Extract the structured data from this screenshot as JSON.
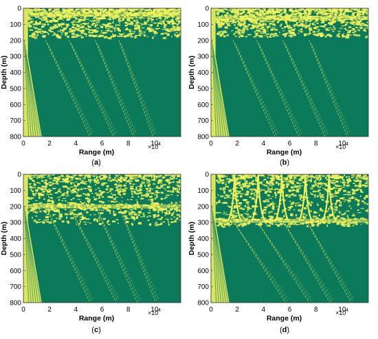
{
  "colors": {
    "background": "#0b7a5b",
    "foreground": "#f2f25c",
    "axis": "#333333"
  },
  "chart_data": [
    {
      "panel": "(a)",
      "type": "heatmap",
      "xlabel": "Range (m)",
      "ylabel": "Depth (m)",
      "x_multiplier": "×10",
      "x_exponent": "4",
      "xlim": [
        0,
        120000
      ],
      "ylim": [
        0,
        800
      ],
      "y_reversed": true,
      "x_ticks": [
        "0",
        "2",
        "4",
        "6",
        "8",
        "10"
      ],
      "y_ticks": [
        "0",
        "100",
        "200",
        "300",
        "400",
        "500",
        "600",
        "700",
        "800"
      ],
      "features": {
        "near_source_band_end_range_m": [
          500,
          14000
        ],
        "surface_interference_depth_m": [
          0,
          180
        ],
        "bright_layer_depth_m": 40,
        "arrival_lines_start_range_m": [
          18000,
          36000,
          56000,
          74000
        ],
        "arrival_lines_end_range_m": [
          52000,
          70000,
          85000,
          100000
        ]
      }
    },
    {
      "panel": "(b)",
      "type": "heatmap",
      "xlabel": "Range (m)",
      "ylabel": "Depth (m)",
      "x_multiplier": "×10",
      "x_exponent": "4",
      "xlim": [
        0,
        120000
      ],
      "ylim": [
        0,
        800
      ],
      "y_reversed": true,
      "x_ticks": [
        "0",
        "2",
        "4",
        "6",
        "8",
        "10"
      ],
      "y_ticks": [
        "0",
        "100",
        "200",
        "300",
        "400",
        "500",
        "600",
        "700",
        "800"
      ],
      "features": {
        "near_source_band_end_range_m": [
          500,
          14000
        ],
        "surface_interference_depth_m": [
          0,
          175
        ],
        "bright_layer_depth_m": 60,
        "arrival_lines_start_range_m": [
          18000,
          36000,
          56000,
          76000
        ],
        "arrival_lines_end_range_m": [
          50000,
          68000,
          88000,
          105000
        ]
      }
    },
    {
      "panel": "(c)",
      "type": "heatmap",
      "xlabel": "Range (m)",
      "ylabel": "Depth (m)",
      "x_multiplier": "×10",
      "x_exponent": "4",
      "xlim": [
        0,
        120000
      ],
      "ylim": [
        0,
        800
      ],
      "y_reversed": true,
      "x_ticks": [
        "0",
        "2",
        "4",
        "6",
        "8",
        "10"
      ],
      "y_ticks": [
        "0",
        "100",
        "200",
        "300",
        "400",
        "500",
        "600",
        "700",
        "800"
      ],
      "features": {
        "near_source_band_end_range_m": [
          500,
          14000
        ],
        "surface_interference_depth_m": [
          0,
          310
        ],
        "bright_layer_depth_m": 200,
        "arrival_lines_start_range_m": [
          18000,
          36000,
          56000,
          74000
        ],
        "arrival_lines_end_range_m": [
          52000,
          72000,
          88000,
          102000
        ]
      }
    },
    {
      "panel": "(d)",
      "type": "heatmap",
      "xlabel": "Range (m)",
      "ylabel": "Depth (m)",
      "x_multiplier": "×10",
      "x_exponent": "4",
      "xlim": [
        0,
        120000
      ],
      "ylim": [
        0,
        800
      ],
      "y_reversed": true,
      "x_ticks": [
        "0",
        "2",
        "4",
        "6",
        "8",
        "10"
      ],
      "y_ticks": [
        "0",
        "100",
        "200",
        "300",
        "400",
        "500",
        "600",
        "700",
        "800"
      ],
      "features": {
        "near_source_band_end_range_m": [
          500,
          14000
        ],
        "surface_interference_depth_m": [
          0,
          320
        ],
        "bright_layer_depth_m": 290,
        "cusp_range_m": [
          18000,
          36000,
          54000,
          72000,
          90000
        ],
        "arrival_lines_start_range_m": [
          18000,
          36000,
          56000,
          74000
        ],
        "arrival_lines_end_range_m": [
          58000,
          76000,
          92000,
          108000
        ]
      }
    }
  ]
}
